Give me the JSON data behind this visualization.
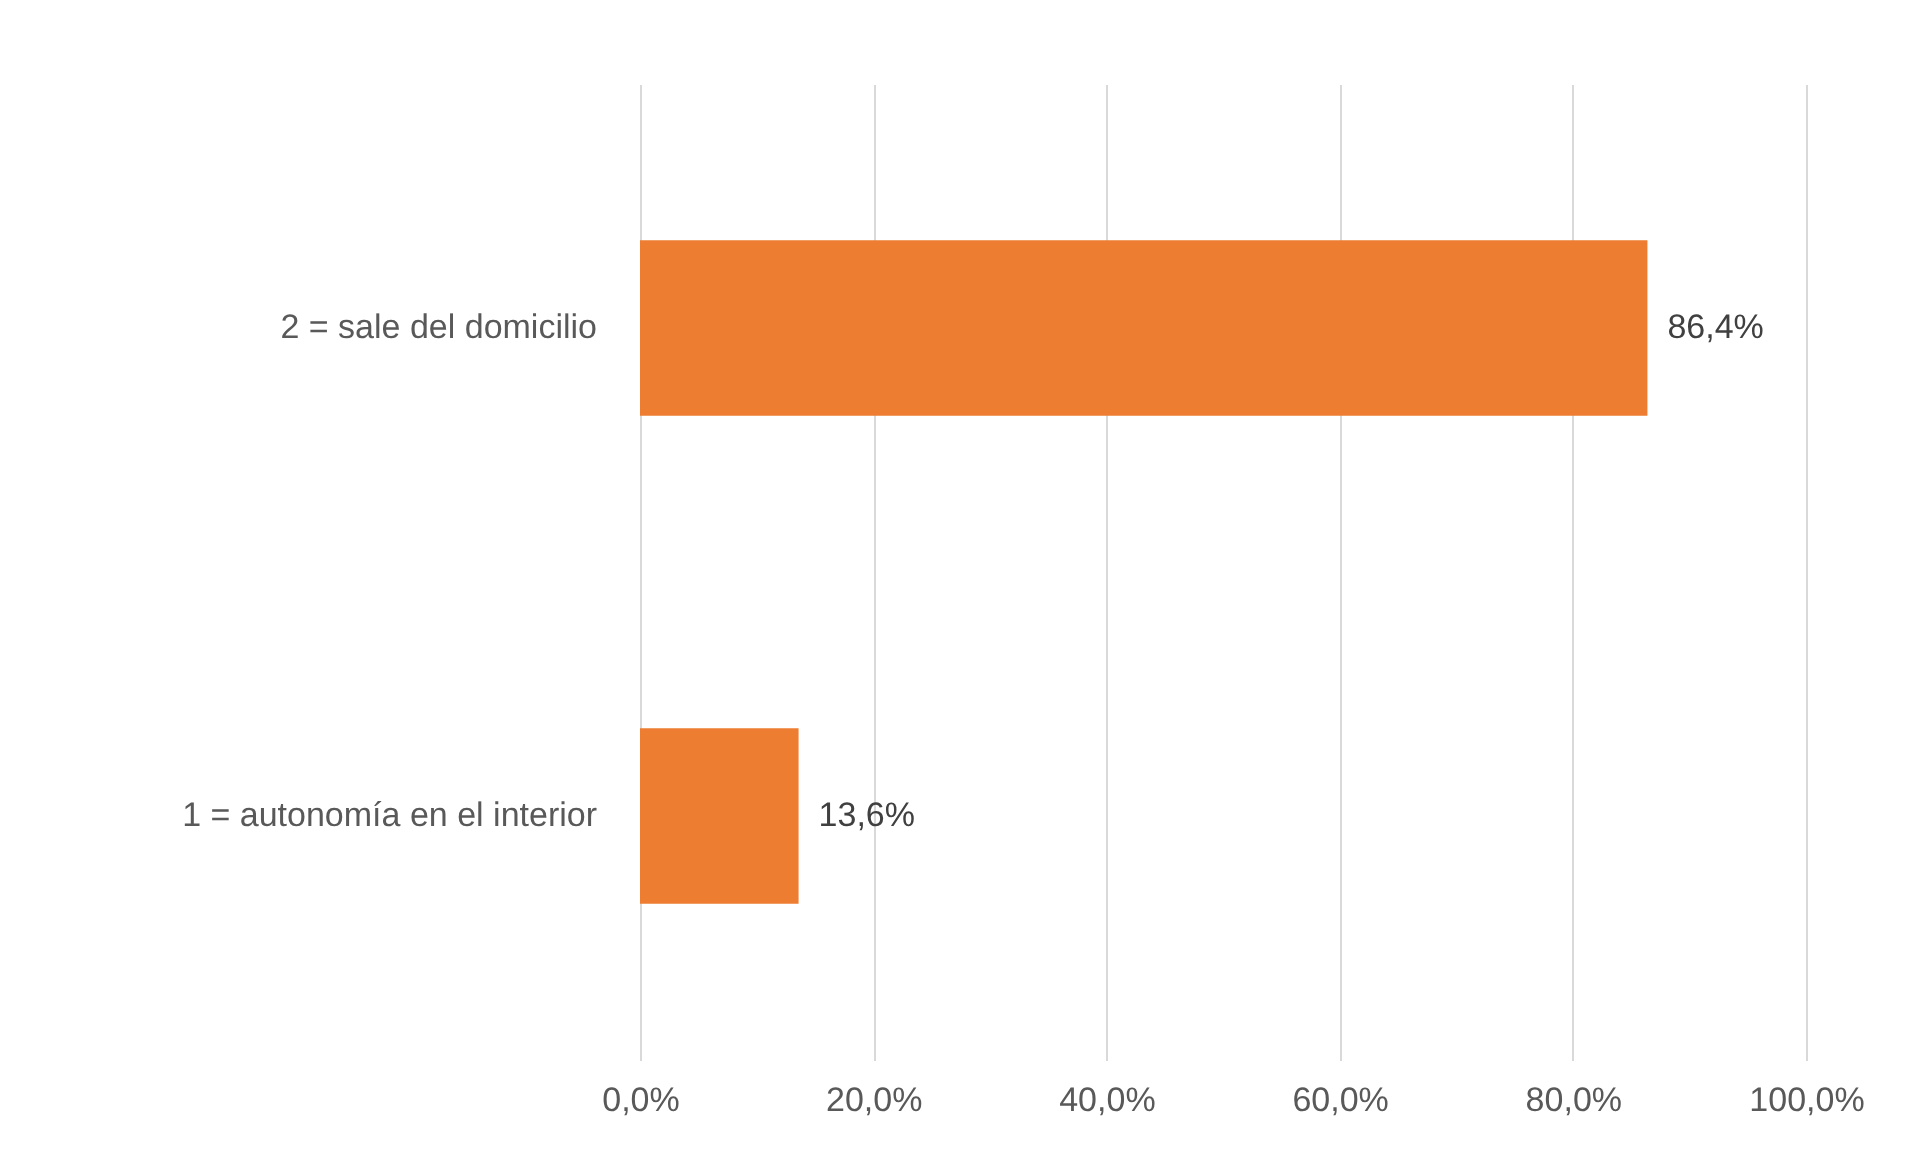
{
  "chart_data": {
    "type": "bar",
    "orientation": "horizontal",
    "categories": [
      "2 = sale del domicilio",
      "1 = autonomía en el interior"
    ],
    "values": [
      86.4,
      13.6
    ],
    "value_labels": [
      "86,4%",
      "13,6%"
    ],
    "color": "#ed7d31",
    "xlim": [
      0,
      100
    ],
    "xticks": [
      {
        "value": 0,
        "label": "0,0%"
      },
      {
        "value": 20,
        "label": "20,0%"
      },
      {
        "value": 40,
        "label": "40,0%"
      },
      {
        "value": 60,
        "label": "60,0%"
      },
      {
        "value": 80,
        "label": "80,0%"
      },
      {
        "value": 100,
        "label": "100,0%"
      }
    ],
    "grid": "x"
  }
}
